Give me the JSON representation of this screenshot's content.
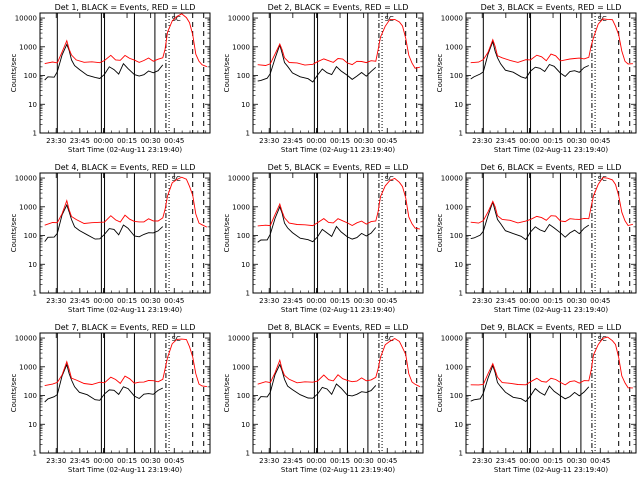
{
  "chart_data": {
    "type": "line",
    "layout": "3x3 grid",
    "ylabel": "Counts/sec",
    "xlabel": "Start Time (02-Aug-11 23:19:40)",
    "y_scale": "log",
    "ylim": [
      1,
      15000
    ],
    "y_ticks": [
      "1",
      "10",
      "100",
      "1000",
      "10000"
    ],
    "y_tick_values": [
      1,
      10,
      100,
      1000,
      10000
    ],
    "x_tick_labels": [
      "23:30",
      "23:45",
      "00:00",
      "00:15",
      "00:30",
      "00:45"
    ],
    "x_tick_minutes": [
      10.3,
      25.3,
      40.3,
      55.3,
      70.3,
      85.3
    ],
    "xlim_minutes": [
      0,
      108
    ],
    "marker_label": "SC",
    "colors": {
      "events": "#000000",
      "lld": "#ff0000"
    },
    "panels": [
      {
        "title": "Det 1, BLACK = Events, RED = LLD"
      },
      {
        "title": "Det 2, BLACK = Events, RED = LLD"
      },
      {
        "title": "Det 3, BLACK = Events, RED = LLD"
      },
      {
        "title": "Det 4, BLACK = Events, RED = LLD"
      },
      {
        "title": "Det 5, BLACK = Events, RED = LLD"
      },
      {
        "title": "Det 6, BLACK = Events, RED = LLD"
      },
      {
        "title": "Det 7, BLACK = Events, RED = LLD"
      },
      {
        "title": "Det 8, BLACK = Events, RED = LLD"
      },
      {
        "title": "Det 9, BLACK = Events, RED = LLD"
      }
    ],
    "vertical_lines_minutes": {
      "solid": [
        11,
        39,
        41,
        60,
        73
      ],
      "dash_dot": [
        80
      ],
      "dotted": [
        82
      ],
      "dashed": [
        97,
        104
      ]
    },
    "series": [
      {
        "name": "Events",
        "x_minutes": [
          3,
          5,
          9,
          11,
          14,
          17,
          18.5,
          20,
          22,
          25,
          30,
          35,
          38,
          41,
          44,
          47,
          50,
          53,
          56,
          60,
          63,
          66,
          69,
          72,
          75,
          78
        ],
        "y": [
          70,
          85,
          95,
          130,
          500,
          1300,
          700,
          360,
          230,
          150,
          110,
          85,
          75,
          120,
          190,
          160,
          120,
          240,
          180,
          110,
          90,
          115,
          140,
          120,
          160,
          220
        ]
      },
      {
        "name": "LLD",
        "x_minutes": [
          3,
          8,
          11,
          14,
          17,
          18.5,
          20,
          23,
          28,
          33,
          38,
          41,
          45,
          48,
          51,
          54,
          57,
          60,
          63,
          66,
          69,
          72,
          75,
          78,
          79.5,
          81,
          84,
          87,
          90,
          93,
          95,
          97,
          99,
          101,
          103,
          106
        ],
        "y": [
          260,
          280,
          300,
          620,
          1600,
          900,
          480,
          360,
          300,
          280,
          300,
          330,
          480,
          380,
          320,
          500,
          420,
          320,
          300,
          340,
          380,
          340,
          360,
          400,
          900,
          3000,
          8000,
          12000,
          13000,
          11000,
          7000,
          2500,
          600,
          300,
          230,
          220
        ]
      }
    ]
  }
}
